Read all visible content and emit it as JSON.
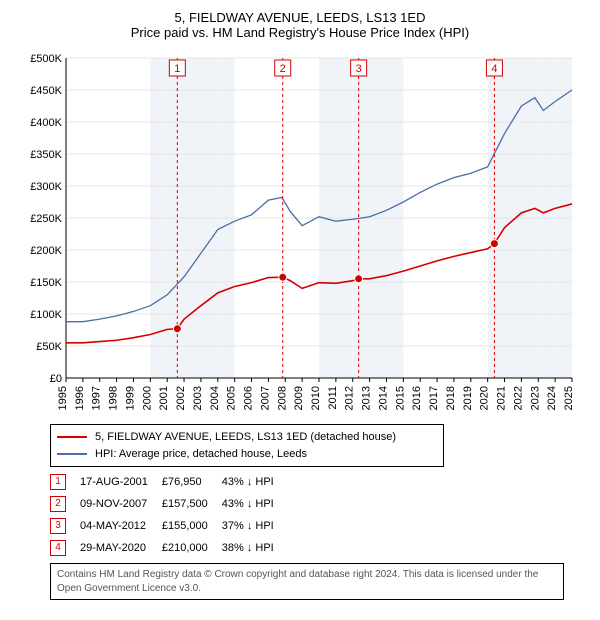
{
  "title_line1": "5, FIELDWAY AVENUE, LEEDS, LS13 1ED",
  "title_line2": "Price paid vs. HM Land Registry's House Price Index (HPI)",
  "chart": {
    "type": "line",
    "background_color": "#ffffff",
    "grid_color": "#e4e4e4",
    "band_color": "#f0f4f8",
    "axis_color": "#000000",
    "years": [
      "1995",
      "1996",
      "1997",
      "1998",
      "1999",
      "2000",
      "2001",
      "2002",
      "2003",
      "2004",
      "2005",
      "2006",
      "2007",
      "2008",
      "2009",
      "2010",
      "2011",
      "2012",
      "2013",
      "2014",
      "2015",
      "2016",
      "2017",
      "2018",
      "2019",
      "2020",
      "2021",
      "2022",
      "2023",
      "2024",
      "2025"
    ],
    "ylim": [
      0,
      500000
    ],
    "ytick_step": 50000,
    "ytick_labels": [
      "£0",
      "£50K",
      "£100K",
      "£150K",
      "£200K",
      "£250K",
      "£300K",
      "£350K",
      "£400K",
      "£450K",
      "£500K"
    ],
    "label_fontsize": 11,
    "line_width_hpi": 1.3,
    "line_width_subject": 1.6,
    "hpi_series": {
      "color": "#4a6fa5",
      "values_by_year": [
        [
          1995,
          88000
        ],
        [
          1996,
          88000
        ],
        [
          1997,
          92000
        ],
        [
          1998,
          97000
        ],
        [
          1999,
          104000
        ],
        [
          2000,
          113000
        ],
        [
          2001,
          130000
        ],
        [
          2002,
          158000
        ],
        [
          2003,
          195000
        ],
        [
          2004,
          232000
        ],
        [
          2005,
          245000
        ],
        [
          2006,
          255000
        ],
        [
          2007,
          278000
        ],
        [
          2007.8,
          282000
        ],
        [
          2008.3,
          260000
        ],
        [
          2009,
          238000
        ],
        [
          2010,
          252000
        ],
        [
          2011,
          245000
        ],
        [
          2012,
          248000
        ],
        [
          2013,
          252000
        ],
        [
          2014,
          262000
        ],
        [
          2015,
          275000
        ],
        [
          2016,
          290000
        ],
        [
          2017,
          303000
        ],
        [
          2018,
          313000
        ],
        [
          2019,
          320000
        ],
        [
          2020,
          330000
        ],
        [
          2021,
          382000
        ],
        [
          2022,
          425000
        ],
        [
          2022.8,
          438000
        ],
        [
          2023.3,
          418000
        ],
        [
          2024,
          432000
        ],
        [
          2025,
          450000
        ]
      ]
    },
    "subject_series": {
      "color": "#d40000",
      "values_by_year": [
        [
          1995,
          55000
        ],
        [
          1996,
          55000
        ],
        [
          1997,
          57000
        ],
        [
          1998,
          59000
        ],
        [
          1999,
          63000
        ],
        [
          2000,
          68000
        ],
        [
          2001,
          76000
        ],
        [
          2001.6,
          76950
        ],
        [
          2002,
          92000
        ],
        [
          2003,
          113000
        ],
        [
          2004,
          133000
        ],
        [
          2005,
          143000
        ],
        [
          2006,
          149000
        ],
        [
          2007,
          157000
        ],
        [
          2007.85,
          157500
        ],
        [
          2008.3,
          152000
        ],
        [
          2009,
          140000
        ],
        [
          2010,
          149000
        ],
        [
          2011,
          148000
        ],
        [
          2012,
          152000
        ],
        [
          2012.35,
          155000
        ],
        [
          2013,
          155000
        ],
        [
          2014,
          160000
        ],
        [
          2015,
          167000
        ],
        [
          2016,
          175000
        ],
        [
          2017,
          183000
        ],
        [
          2018,
          190000
        ],
        [
          2019,
          196000
        ],
        [
          2020,
          202000
        ],
        [
          2020.4,
          210000
        ],
        [
          2021,
          235000
        ],
        [
          2022,
          258000
        ],
        [
          2022.8,
          265000
        ],
        [
          2023.3,
          258000
        ],
        [
          2024,
          265000
        ],
        [
          2025,
          272000
        ]
      ]
    },
    "sale_markers": [
      {
        "n": 1,
        "year": 2001.6,
        "value": 76950
      },
      {
        "n": 2,
        "year": 2007.85,
        "value": 157500
      },
      {
        "n": 3,
        "year": 2012.35,
        "value": 155000
      },
      {
        "n": 4,
        "year": 2020.4,
        "value": 210000
      }
    ],
    "marker_border": "#d40000",
    "marker_radius": 4,
    "vline_dash": "3,3"
  },
  "legend": {
    "items": [
      {
        "color": "#d40000",
        "label": "5, FIELDWAY AVENUE, LEEDS, LS13 1ED (detached house)"
      },
      {
        "color": "#4a6fa5",
        "label": "HPI: Average price, detached house, Leeds"
      }
    ]
  },
  "sales": [
    {
      "n": "1",
      "date": "17-AUG-2001",
      "price": "£76,950",
      "delta": "43% ↓ HPI"
    },
    {
      "n": "2",
      "date": "09-NOV-2007",
      "price": "£157,500",
      "delta": "43% ↓ HPI"
    },
    {
      "n": "3",
      "date": "04-MAY-2012",
      "price": "£155,000",
      "delta": "37% ↓ HPI"
    },
    {
      "n": "4",
      "date": "29-MAY-2020",
      "price": "£210,000",
      "delta": "38% ↓ HPI"
    }
  ],
  "badge_color": "#d40000",
  "footer": "Contains HM Land Registry data © Crown copyright and database right 2024. This data is licensed under the Open Government Licence v3.0."
}
